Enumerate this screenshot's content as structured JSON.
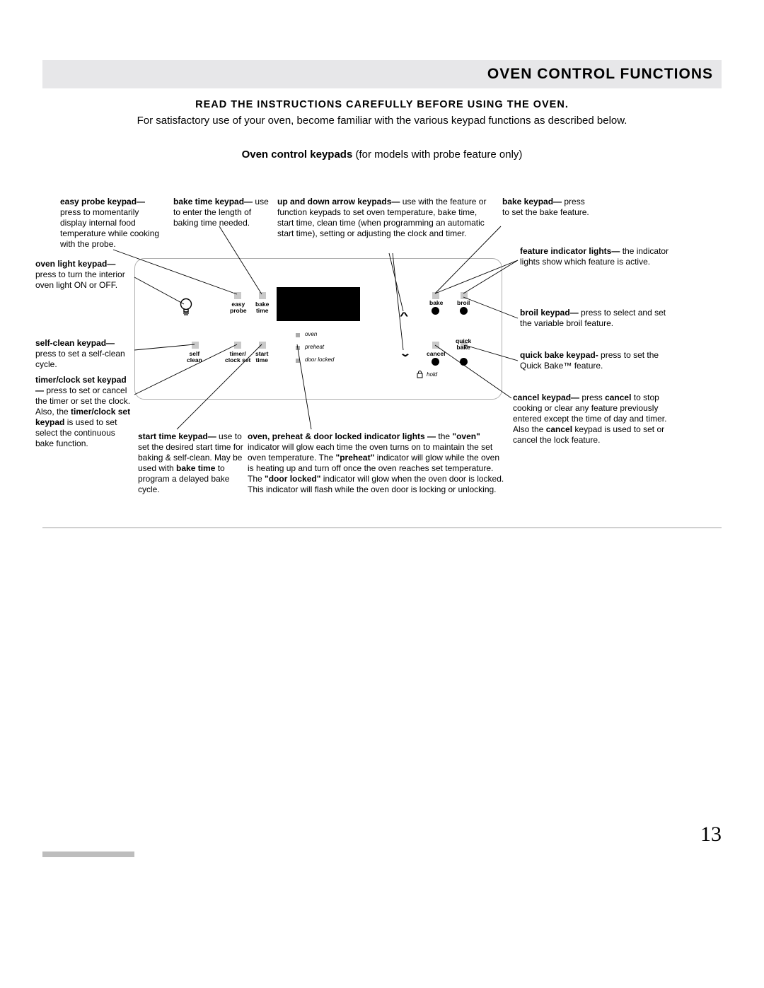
{
  "page_number": "13",
  "header": {
    "title": "OVEN CONTROL FUNCTIONS"
  },
  "subhead": "READ THE INSTRUCTIONS CAREFULLY BEFORE USING THE OVEN.",
  "subhead_desc": "For satisfactory use of your oven, become familiar with the various keypad functions as described below.",
  "caption_bold": "Oven control keypads",
  "caption_rest": " (for models with probe feature only)",
  "panel": {
    "labels": {
      "easy_probe": "easy\nprobe",
      "bake_time": "bake\ntime",
      "self_clean": "self\nclean",
      "timer_clock": "timer/\nclock set",
      "start_time": "start\ntime",
      "bake": "bake",
      "broil": "broil",
      "cancel": "cancel",
      "quick_bake": "quick\nbake",
      "hold": "hold",
      "oven": "oven",
      "preheat": "preheat",
      "door_locked": "door locked"
    }
  },
  "callouts": {
    "easy_probe": {
      "bold": "easy probe keypad—",
      "text": " press to momentarily display internal food temperature while cooking with the probe."
    },
    "bake_time": {
      "bold": "bake time keypad—",
      "text": " use to enter the length of baking time needed."
    },
    "arrows": {
      "bold": "up and down arrow keypads—",
      "text": " use with the feature or function keypads to set oven temperature, bake time, start time, clean time (when programming an automatic start time), setting or adjusting the clock and timer."
    },
    "bake": {
      "bold": "bake keypad—",
      "text": " press to set the bake feature."
    },
    "oven_light": {
      "bold": "oven light keypad—",
      "text": " press to turn the interior oven light ON or OFF."
    },
    "self_clean": {
      "bold": "self-clean keypad—",
      "text": " press to set a self-clean cycle."
    },
    "timer_clock": {
      "bold1": "timer/clock set keypad—",
      "text1": " press to set or cancel the timer or set the clock. Also, the ",
      "bold2": "timer/clock set keypad",
      "text2": " is used to set select the continuous bake function."
    },
    "start_time": {
      "bold": "start time keypad—",
      "text": " use to set the desired start time for baking & self-clean. May be used with ",
      "bold2": "bake time",
      "text2": " to program a delayed bake cycle."
    },
    "indicators": {
      "bold": "oven, preheat & door locked indicator lights —",
      "text1": " the ",
      "b_oven": "\"oven\"",
      "text2": " indicator will glow each time the oven turns on to maintain the set oven temperature. The ",
      "b_preheat": "\"preheat\"",
      "text3": " indicator will glow while the oven is heating up and turn off once the oven reaches set temperature. The ",
      "b_door": "\"door locked\"",
      "text4": " indicator will glow when the oven door is locked. This indicator will flash while the oven door is locking or unlocking."
    },
    "feature_lights": {
      "bold": "feature indicator lights—",
      "text": " the indicator lights show which feature is active."
    },
    "broil": {
      "bold": "broil keypad—",
      "text": " press to select and set the variable broil feature."
    },
    "quick_bake": {
      "bold": "quick bake keypad-",
      "text": " press to set the Quick Bake™ feature."
    },
    "cancel": {
      "bold1": "cancel keypad—",
      "text1": " press ",
      "bold2": "cancel",
      "text2": " to stop cooking or clear any feature previously entered except the time of day and timer. Also the ",
      "bold3": "cancel",
      "text3": " keypad is used to set or cancel the lock feature."
    }
  }
}
